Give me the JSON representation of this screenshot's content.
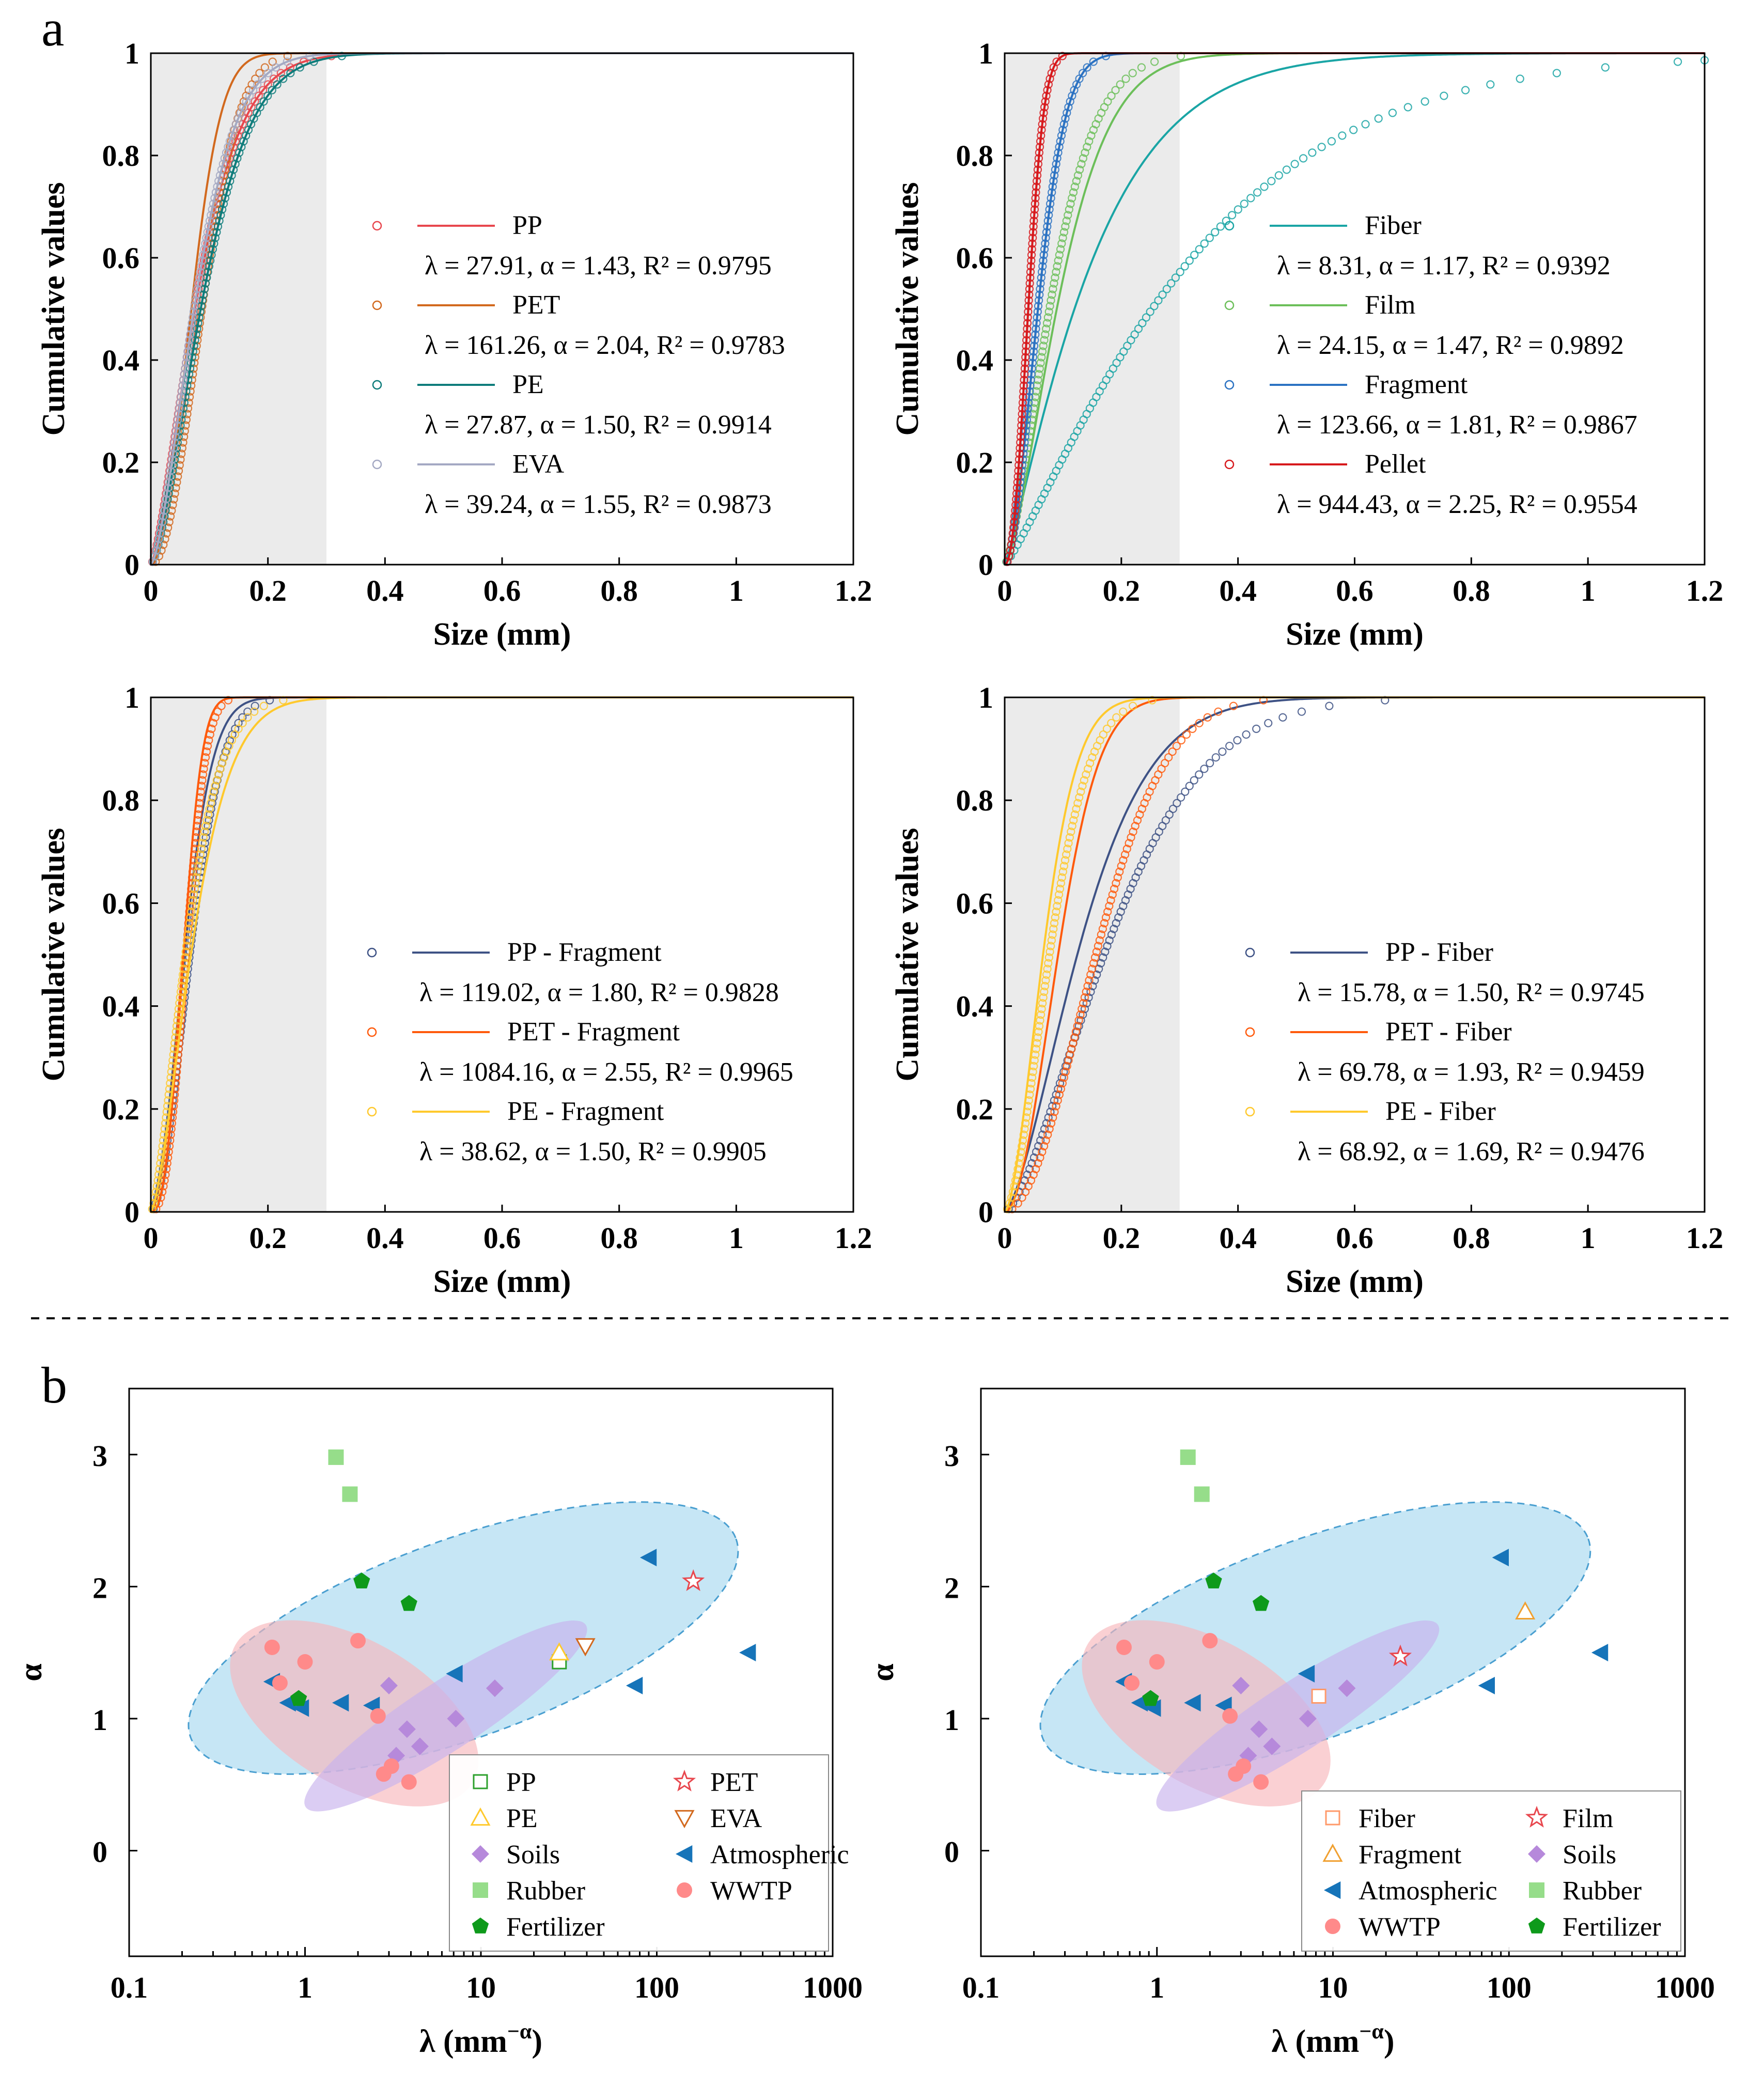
{
  "figure_labels": {
    "a": "a",
    "b": "b"
  },
  "colors": {
    "pp": "#e8474e",
    "pet": "#d2691e",
    "pe": "#0e7c7b",
    "eva": "#a4a9c3",
    "fiber": "#1aa5a5",
    "film": "#6cbf5a",
    "fragment": "#2b72c2",
    "pellet": "#d7191c",
    "pp_combo": "#3e5285",
    "pet_combo": "#ff5a0c",
    "pe_combo": "#ffc92d",
    "rubber": "#96dd8a",
    "fertilizer": "#0e9a1b",
    "soils": "#b689db",
    "atmospheric": "#1674b9",
    "wwtp": "#ff8a8a",
    "ell_blue": "#a8d8f0",
    "ell_pink": "#f7b7bb",
    "ell_purple": "#c7b2ec",
    "shade": "#ebebeb"
  },
  "chart_data": [
    {
      "type": "line",
      "id": "a1",
      "xlabel": "Size (mm)",
      "ylabel": "Cumulative values",
      "xlim": [
        0,
        1.2
      ],
      "ylim": [
        0,
        1
      ],
      "xticks": [
        "0",
        "0.2",
        "0.4",
        "0.6",
        "0.8",
        "1",
        "1.2"
      ],
      "yticks": [
        "0",
        "0.2",
        "0.4",
        "0.6",
        "0.8",
        "1"
      ],
      "shaded_range": [
        0,
        0.3
      ],
      "series": [
        {
          "name": "PP",
          "lambda": 27.91,
          "alpha": 1.43,
          "stats": "λ = 27.91, α = 1.43, R² = 0.9795",
          "color": "#e8474e",
          "sample_max": 1.2,
          "sample_k": 1.0
        },
        {
          "name": "PET",
          "lambda": 161.26,
          "alpha": 2.04,
          "stats": "λ = 161.26, α = 2.04, R² = 0.9783",
          "color": "#d2691e",
          "sample_max": 1.2,
          "sample_k": 1.6
        },
        {
          "name": "PE",
          "lambda": 27.87,
          "alpha": 1.5,
          "stats": "λ = 27.87, α = 1.50, R² = 0.9914",
          "color": "#0e7c7b",
          "sample_max": 1.1,
          "sample_k": 1.0
        },
        {
          "name": "EVA",
          "lambda": 39.24,
          "alpha": 1.55,
          "stats": "λ = 39.24, α = 1.55, R² = 0.9873",
          "color": "#a4a9c3",
          "sample_max": 0.9,
          "sample_k": 1.0
        }
      ]
    },
    {
      "type": "line",
      "id": "a2",
      "xlabel": "Size (mm)",
      "ylabel": "Cumulative values",
      "xlim": [
        0,
        1.2
      ],
      "ylim": [
        0,
        1
      ],
      "xticks": [
        "0",
        "0.2",
        "0.4",
        "0.6",
        "0.8",
        "1",
        "1.2"
      ],
      "yticks": [
        "0",
        "0.2",
        "0.4",
        "0.6",
        "0.8",
        "1"
      ],
      "shaded_range": [
        0,
        0.3
      ],
      "series": [
        {
          "name": "Fiber",
          "lambda": 8.31,
          "alpha": 1.17,
          "stats": "λ = 8.31, α = 1.17, R² = 0.9392",
          "color": "#1aa5a5",
          "sample_max": 1.2,
          "sample_k": 2.4
        },
        {
          "name": "Film",
          "lambda": 24.15,
          "alpha": 1.47,
          "stats": "λ = 24.15, α = 1.47, R² = 0.9892",
          "color": "#6cbf5a",
          "sample_max": 1.0,
          "sample_k": 0.8
        },
        {
          "name": "Fragment",
          "lambda": 123.66,
          "alpha": 1.81,
          "stats": "λ = 123.66, α = 1.81, R² = 0.9867",
          "color": "#2b72c2",
          "sample_max": 1.1,
          "sample_k": 1.0
        },
        {
          "name": "Pellet",
          "lambda": 944.43,
          "alpha": 2.25,
          "stats": "λ = 944.43, α = 2.25, R² = 0.9554",
          "color": "#d7191c",
          "sample_max": 0.15,
          "sample_k": 1.0
        }
      ]
    },
    {
      "type": "line",
      "id": "a3",
      "xlabel": "Size (mm)",
      "ylabel": "Cumulative values",
      "xlim": [
        0,
        1.2
      ],
      "ylim": [
        0,
        1
      ],
      "xticks": [
        "0",
        "0.2",
        "0.4",
        "0.6",
        "0.8",
        "1",
        "1.2"
      ],
      "yticks": [
        "0",
        "0.2",
        "0.4",
        "0.6",
        "0.8",
        "1"
      ],
      "shaded_range": [
        0,
        0.3
      ],
      "series": [
        {
          "name": "PP - Fragment",
          "lambda": 119.02,
          "alpha": 1.8,
          "stats": "λ = 119.02, α = 1.80, R² = 0.9828",
          "color": "#3e5285",
          "sample_max": 0.65,
          "sample_k": 1.3
        },
        {
          "name": "PET - Fragment",
          "lambda": 1084.16,
          "alpha": 2.55,
          "stats": "λ = 1084.16, α = 2.55, R² = 0.9965",
          "color": "#ff5a0c",
          "sample_max": 0.83,
          "sample_k": 1.2
        },
        {
          "name": "PE - Fragment",
          "lambda": 38.62,
          "alpha": 1.5,
          "stats": "λ = 38.62, α = 1.50, R² = 0.9905",
          "color": "#ffc92d",
          "sample_max": 0.75,
          "sample_k": 0.8
        }
      ]
    },
    {
      "type": "line",
      "id": "a4",
      "xlabel": "Size (mm)",
      "ylabel": "Cumulative values",
      "xlim": [
        0,
        1.2
      ],
      "ylim": [
        0,
        1
      ],
      "xticks": [
        "0",
        "0.2",
        "0.4",
        "0.6",
        "0.8",
        "1",
        "1.2"
      ],
      "yticks": [
        "0",
        "0.2",
        "0.4",
        "0.6",
        "0.8",
        "1"
      ],
      "shaded_range": [
        0,
        0.3
      ],
      "series": [
        {
          "name": "PP - Fiber",
          "lambda": 15.78,
          "alpha": 1.5,
          "stats": "λ = 15.78, α = 1.50, R² = 0.9745",
          "color": "#3e5285",
          "sample_max": 1.2,
          "sample_k": 1.6
        },
        {
          "name": "PET - Fiber",
          "lambda": 69.78,
          "alpha": 1.93,
          "stats": "λ = 69.78, α = 1.93, R² = 0.9459",
          "color": "#ff5a0c",
          "sample_max": 1.2,
          "sample_k": 2.8
        },
        {
          "name": "PE - Fiber",
          "lambda": 68.92,
          "alpha": 1.69,
          "stats": "λ = 68.92, α = 1.69, R² = 0.9476",
          "color": "#ffc92d",
          "sample_max": 1.1,
          "sample_k": 1.3
        }
      ]
    },
    {
      "type": "scatter",
      "id": "b1",
      "xlabel": "λ (mm⁻ᵅ)",
      "ylabel": "α",
      "xscale": "log",
      "xlim": [
        0.1,
        1000
      ],
      "ylim": [
        -0.8,
        3.5
      ],
      "xticks": [
        "0.1",
        "1",
        "10",
        "100",
        "1000"
      ],
      "yticks": [
        "0",
        "1",
        "2",
        "3"
      ],
      "ellipses": [
        {
          "name": "Atmospheric region",
          "cx": 0.9,
          "cy": 1.61,
          "rx": 1.65,
          "ry": 0.75,
          "rot": 20,
          "color": "#a8d8f0"
        },
        {
          "name": "WWTP region",
          "cx": 0.28,
          "cy": 1.04,
          "rx": 0.78,
          "ry": 0.55,
          "rot": -30,
          "color": "#f7b7bb"
        },
        {
          "name": "Soils region",
          "cx": 0.8,
          "cy": 1.02,
          "rx": 0.95,
          "ry": 0.26,
          "rot": 33,
          "color": "#c7b2ec"
        }
      ],
      "series": [
        {
          "name": "PP",
          "marker": "open-square",
          "color": "#2ca02c",
          "points": [
            [
              27.91,
              1.43
            ]
          ]
        },
        {
          "name": "PET",
          "marker": "open-star",
          "color": "#e8474e",
          "points": [
            [
              161.26,
              2.04
            ]
          ]
        },
        {
          "name": "PE",
          "marker": "open-triangle-up",
          "color": "#ffc92d",
          "points": [
            [
              27.87,
              1.5
            ]
          ]
        },
        {
          "name": "EVA",
          "marker": "open-triangle-down",
          "color": "#d2691e",
          "points": [
            [
              39.24,
              1.55
            ]
          ]
        },
        {
          "name": "Soils",
          "marker": "diamond",
          "color": "#b689db",
          "points": [
            [
              3.0,
              1.25
            ],
            [
              12,
              1.23
            ],
            [
              3.8,
              0.92
            ],
            [
              7.2,
              1.0
            ],
            [
              4.5,
              0.79
            ],
            [
              3.3,
              0.72
            ]
          ]
        },
        {
          "name": "Atmospheric",
          "marker": "triangle-left",
          "color": "#1674b9",
          "points": [
            [
              0.65,
              1.28
            ],
            [
              0.8,
              1.12
            ],
            [
              0.95,
              1.08
            ],
            [
              1.6,
              1.12
            ],
            [
              2.4,
              1.1
            ],
            [
              7.1,
              1.34
            ],
            [
              90,
              2.22
            ],
            [
              75,
              1.25
            ],
            [
              330,
              1.5
            ]
          ]
        },
        {
          "name": "Rubber",
          "marker": "square",
          "color": "#96dd8a",
          "points": [
            [
              1.5,
              2.98
            ],
            [
              1.8,
              2.7
            ]
          ]
        },
        {
          "name": "WWTP",
          "marker": "circle",
          "color": "#ff8a8a",
          "points": [
            [
              0.65,
              1.54
            ],
            [
              0.72,
              1.27
            ],
            [
              1.0,
              1.43
            ],
            [
              2.0,
              1.59
            ],
            [
              2.6,
              1.02
            ],
            [
              2.8,
              0.58
            ],
            [
              3.1,
              0.64
            ],
            [
              3.9,
              0.52
            ]
          ]
        },
        {
          "name": "Fertilizer",
          "marker": "pentagon",
          "color": "#0e9a1b",
          "points": [
            [
              2.1,
              2.04
            ],
            [
              3.9,
              1.87
            ],
            [
              0.92,
              1.15
            ]
          ]
        }
      ]
    },
    {
      "type": "scatter",
      "id": "b2",
      "xlabel": "λ (mm⁻ᵅ)",
      "ylabel": "α",
      "xscale": "log",
      "xlim": [
        0.1,
        1000
      ],
      "ylim": [
        -0.8,
        3.5
      ],
      "xticks": [
        "0.1",
        "1",
        "10",
        "100",
        "1000"
      ],
      "yticks": [
        "0",
        "1",
        "2",
        "3"
      ],
      "ellipses": [
        {
          "name": "Atmospheric region",
          "cx": 0.9,
          "cy": 1.61,
          "rx": 1.65,
          "ry": 0.75,
          "rot": 20,
          "color": "#a8d8f0"
        },
        {
          "name": "WWTP region",
          "cx": 0.28,
          "cy": 1.04,
          "rx": 0.78,
          "ry": 0.55,
          "rot": -30,
          "color": "#f7b7bb"
        },
        {
          "name": "Soils region",
          "cx": 0.8,
          "cy": 1.02,
          "rx": 0.95,
          "ry": 0.26,
          "rot": 33,
          "color": "#c7b2ec"
        }
      ],
      "series": [
        {
          "name": "Fiber",
          "marker": "open-square",
          "color": "#ff9a6a",
          "points": [
            [
              8.31,
              1.17
            ]
          ]
        },
        {
          "name": "Film",
          "marker": "open-star",
          "color": "#e8474e",
          "points": [
            [
              24.15,
              1.47
            ]
          ]
        },
        {
          "name": "Fragment",
          "marker": "open-triangle-up",
          "color": "#f0a030",
          "points": [
            [
              123.66,
              1.81
            ]
          ]
        },
        {
          "name": "Soils",
          "marker": "diamond",
          "color": "#b689db",
          "points": [
            [
              3.0,
              1.25
            ],
            [
              12,
              1.23
            ],
            [
              3.8,
              0.92
            ],
            [
              7.2,
              1.0
            ],
            [
              4.5,
              0.79
            ],
            [
              3.3,
              0.72
            ]
          ]
        },
        {
          "name": "Atmospheric",
          "marker": "triangle-left",
          "color": "#1674b9",
          "points": [
            [
              0.65,
              1.28
            ],
            [
              0.8,
              1.12
            ],
            [
              0.95,
              1.08
            ],
            [
              1.6,
              1.12
            ],
            [
              2.4,
              1.1
            ],
            [
              7.1,
              1.34
            ],
            [
              90,
              2.22
            ],
            [
              75,
              1.25
            ],
            [
              330,
              1.5
            ]
          ]
        },
        {
          "name": "Rubber",
          "marker": "square",
          "color": "#96dd8a",
          "points": [
            [
              1.5,
              2.98
            ],
            [
              1.8,
              2.7
            ]
          ]
        },
        {
          "name": "WWTP",
          "marker": "circle",
          "color": "#ff8a8a",
          "points": [
            [
              0.65,
              1.54
            ],
            [
              0.72,
              1.27
            ],
            [
              1.0,
              1.43
            ],
            [
              2.0,
              1.59
            ],
            [
              2.6,
              1.02
            ],
            [
              2.8,
              0.58
            ],
            [
              3.1,
              0.64
            ],
            [
              3.9,
              0.52
            ]
          ]
        },
        {
          "name": "Fertilizer",
          "marker": "pentagon",
          "color": "#0e9a1b",
          "points": [
            [
              2.1,
              2.04
            ],
            [
              3.9,
              1.87
            ],
            [
              0.92,
              1.15
            ]
          ]
        }
      ]
    }
  ]
}
